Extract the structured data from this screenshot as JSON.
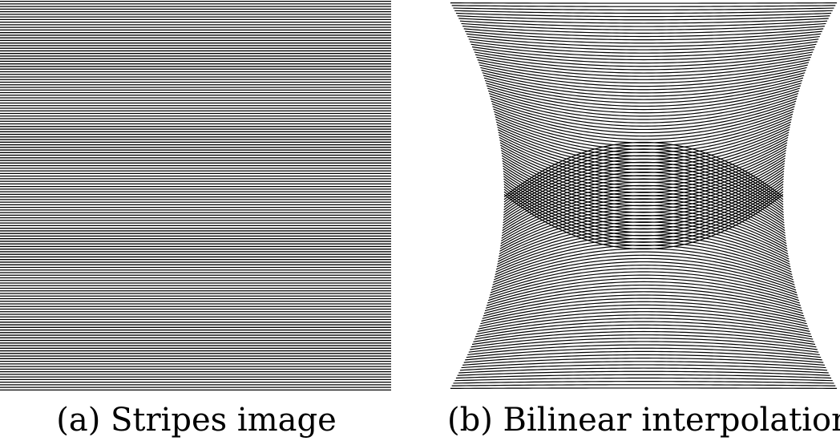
{
  "figure": {
    "panels": [
      {
        "id": "a",
        "caption": "(a) Stripes image",
        "content": "horizontal-stripes"
      },
      {
        "id": "b",
        "caption": "(b) Bilinear interpolation",
        "content": "warped-stripes-moire"
      }
    ],
    "colors": {
      "stripe": "#000000",
      "background": "#ffffff"
    }
  }
}
